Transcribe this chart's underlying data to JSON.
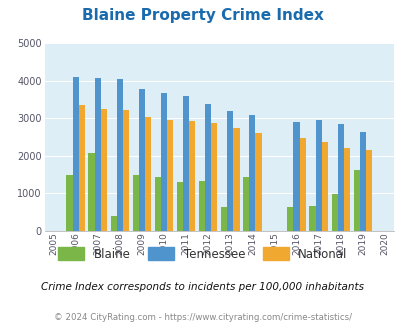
{
  "title": "Blaine Property Crime Index",
  "years": [
    2005,
    2006,
    2007,
    2008,
    2009,
    2010,
    2011,
    2012,
    2013,
    2014,
    2015,
    2016,
    2017,
    2018,
    2019,
    2020
  ],
  "blaine": [
    null,
    1500,
    2080,
    400,
    1490,
    1430,
    1300,
    1330,
    650,
    1440,
    null,
    650,
    670,
    990,
    1620,
    null
  ],
  "tennessee": [
    null,
    4100,
    4080,
    4050,
    3780,
    3660,
    3590,
    3370,
    3180,
    3080,
    null,
    2890,
    2950,
    2840,
    2630,
    null
  ],
  "national": [
    null,
    3350,
    3230,
    3210,
    3040,
    2950,
    2920,
    2870,
    2730,
    2600,
    null,
    2460,
    2360,
    2200,
    2140,
    null
  ],
  "blaine_color": "#7ab648",
  "tennessee_color": "#4f94cd",
  "national_color": "#f0a830",
  "bg_color": "#ddeef6",
  "ylim": [
    0,
    5000
  ],
  "yticks": [
    0,
    1000,
    2000,
    3000,
    4000,
    5000
  ],
  "subtitle": "Crime Index corresponds to incidents per 100,000 inhabitants",
  "footer": "© 2024 CityRating.com - https://www.cityrating.com/crime-statistics/",
  "bar_width": 0.28
}
